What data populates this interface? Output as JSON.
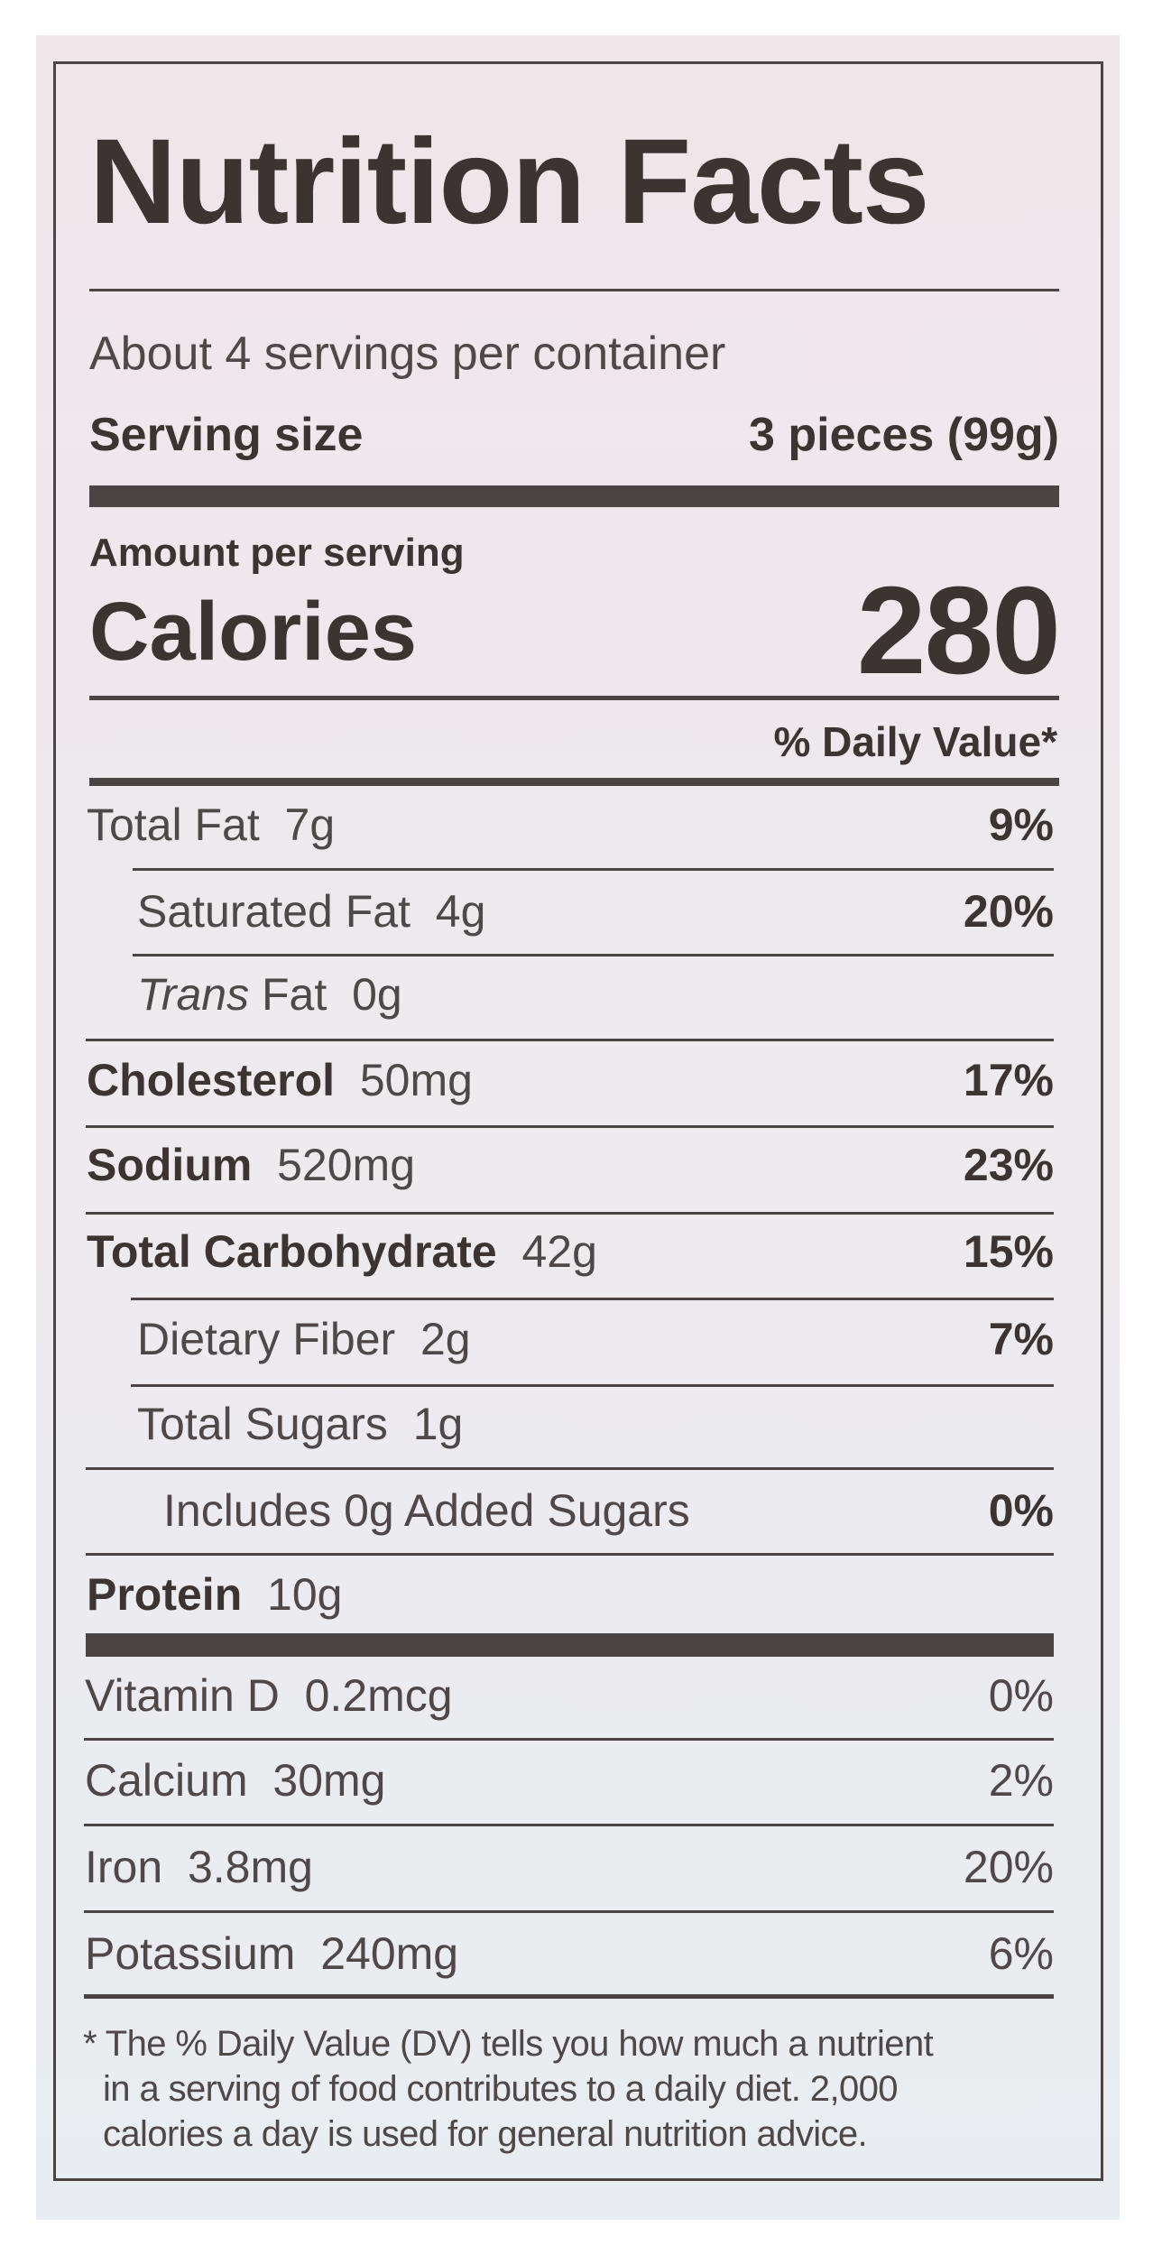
{
  "title": "Nutrition Facts",
  "servings_per_container": "About 4 servings per container",
  "serving_size": {
    "label": "Serving size",
    "value": "3 pieces (99g)"
  },
  "amount_per_serving": "Amount per serving",
  "calories": {
    "label": "Calories",
    "value": "280"
  },
  "daily_value_header": "% Daily Value*",
  "nutrients": [
    {
      "name": "Total Fat",
      "amount": "7g",
      "dv": "9%"
    },
    {
      "name": "Saturated Fat",
      "amount": "4g",
      "dv": "20%"
    },
    {
      "name": "Trans",
      "name_suffix": "Fat",
      "amount": "0g",
      "dv": ""
    },
    {
      "name": "Cholesterol",
      "amount": "50mg",
      "dv": "17%"
    },
    {
      "name": "Sodium",
      "amount": "520mg",
      "dv": "23%"
    },
    {
      "name": "Total Carbohydrate",
      "amount": "42g",
      "dv": "15%"
    },
    {
      "name": "Dietary Fiber",
      "amount": "2g",
      "dv": "7%"
    },
    {
      "name": "Total Sugars",
      "amount": "1g",
      "dv": ""
    },
    {
      "name": "Includes 0g Added Sugars",
      "amount": "",
      "dv": "0%"
    },
    {
      "name": "Protein",
      "amount": "10g",
      "dv": ""
    }
  ],
  "vitamins": [
    {
      "name": "Vitamin D",
      "amount": "0.2mcg",
      "dv": "0%"
    },
    {
      "name": "Calcium",
      "amount": "30mg",
      "dv": "2%"
    },
    {
      "name": "Iron",
      "amount": "3.8mg",
      "dv": "20%"
    },
    {
      "name": "Potassium",
      "amount": "240mg",
      "dv": "6%"
    }
  ],
  "footnote": [
    "* The % Daily Value (DV) tells you how much a nutrient",
    "in a serving of food contributes to a daily diet. 2,000",
    "calories a day is used for general nutrition advice."
  ],
  "colors": {
    "ink": "#3b3432",
    "label_bg": "#eeeaee"
  }
}
